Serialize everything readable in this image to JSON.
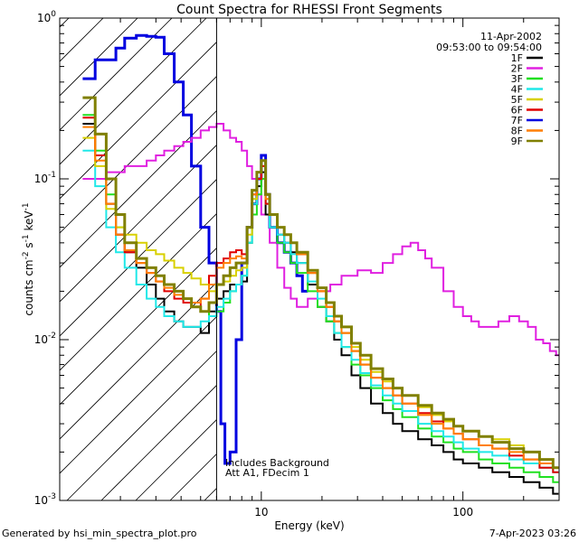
{
  "chart_data": {
    "type": "line",
    "title": "Count Spectra for RHESSI Front Segments",
    "xlabel": "Energy (keV)",
    "ylabel_parts": [
      "counts cm",
      "-2",
      " s",
      "-1",
      " keV",
      "-1"
    ],
    "xscale": "log",
    "yscale": "log",
    "xlim": [
      1.0,
      300
    ],
    "ylim": [
      0.001,
      1.0
    ],
    "x_ticks": [
      {
        "value": 10,
        "label": "10"
      },
      {
        "value": 100,
        "label": "100"
      }
    ],
    "y_ticks": [
      {
        "value": 1.0,
        "base": "10",
        "exp": "0"
      },
      {
        "value": 0.1,
        "base": "10",
        "exp": "-1"
      },
      {
        "value": 0.01,
        "base": "10",
        "exp": "-2"
      },
      {
        "value": 0.001,
        "base": "10",
        "exp": "-3"
      }
    ],
    "date": "11-Apr-2002",
    "time_range": "09:53:00 to 09:54:00",
    "annotations": [
      "Includes Background",
      "Att A1, FDecim 1"
    ],
    "vertical_line_energy": 6.0,
    "hatched_region": [
      1.0,
      6.0
    ],
    "legend": [
      {
        "name": "1F",
        "color": "#000000"
      },
      {
        "name": "2F",
        "color": "#e020e0"
      },
      {
        "name": "3F",
        "color": "#20e020"
      },
      {
        "name": "4F",
        "color": "#20e8e8"
      },
      {
        "name": "5F",
        "color": "#d8d000"
      },
      {
        "name": "6F",
        "color": "#e00000"
      },
      {
        "name": "7F",
        "color": "#0000e0"
      },
      {
        "name": "8F",
        "color": "#ff7f00"
      },
      {
        "name": "9F",
        "color": "#808000"
      }
    ],
    "series": [
      {
        "name": "7F",
        "color": "#0000e0",
        "width": 3,
        "x": [
          1.3,
          1.5,
          1.7,
          1.9,
          2.1,
          2.4,
          2.7,
          3.0,
          3.3,
          3.7,
          4.1,
          4.5,
          5.0,
          5.5,
          6.0,
          6.3,
          6.6,
          7.0,
          7.5,
          8.0,
          8.5,
          9.0,
          9.5,
          10.0,
          10.5,
          11.0,
          12,
          13,
          14,
          15,
          16
        ],
        "y": [
          0.42,
          0.55,
          0.55,
          0.65,
          0.75,
          0.78,
          0.77,
          0.76,
          0.6,
          0.4,
          0.25,
          0.12,
          0.05,
          0.03,
          0.015,
          0.003,
          0.0017,
          0.002,
          0.01,
          0.03,
          0.05,
          0.07,
          0.1,
          0.14,
          0.08,
          0.05,
          0.04,
          0.035,
          0.03,
          0.025,
          0.02
        ]
      },
      {
        "name": "2F",
        "color": "#e020e0",
        "width": 2,
        "x": [
          1.3,
          1.5,
          1.7,
          1.9,
          2.1,
          2.4,
          2.7,
          3.0,
          3.3,
          3.7,
          4.1,
          4.5,
          5.0,
          5.5,
          6.0,
          6.5,
          7.0,
          7.5,
          8.0,
          8.5,
          9.0,
          9.5,
          10,
          11,
          12,
          13,
          14,
          15,
          17,
          19,
          22,
          25,
          30,
          35,
          40,
          45,
          50,
          55,
          60,
          65,
          70,
          80,
          90,
          100,
          110,
          120,
          135,
          150,
          170,
          190,
          210,
          230,
          250,
          270,
          290
        ],
        "y": [
          0.1,
          0.1,
          0.11,
          0.11,
          0.12,
          0.12,
          0.13,
          0.14,
          0.15,
          0.16,
          0.17,
          0.18,
          0.2,
          0.21,
          0.22,
          0.2,
          0.18,
          0.17,
          0.15,
          0.12,
          0.1,
          0.08,
          0.06,
          0.04,
          0.028,
          0.021,
          0.018,
          0.016,
          0.018,
          0.02,
          0.022,
          0.025,
          0.027,
          0.026,
          0.03,
          0.034,
          0.038,
          0.04,
          0.036,
          0.032,
          0.028,
          0.02,
          0.016,
          0.014,
          0.013,
          0.012,
          0.012,
          0.013,
          0.014,
          0.013,
          0.012,
          0.01,
          0.0095,
          0.0085,
          0.008
        ]
      },
      {
        "name": "1F",
        "color": "#000000",
        "width": 2,
        "x": [
          1.3,
          1.5,
          1.7,
          1.9,
          2.1,
          2.4,
          2.7,
          3.0,
          3.3,
          3.7,
          4.1,
          4.5,
          5.0,
          5.5,
          6.0,
          6.5,
          7.0,
          7.5,
          8.0,
          8.5,
          9.0,
          9.5,
          10,
          10.5,
          11,
          12,
          13,
          14,
          15,
          17,
          19,
          21,
          23,
          25,
          28,
          31,
          35,
          40,
          45,
          50,
          60,
          70,
          80,
          90,
          100,
          120,
          140,
          170,
          200,
          240,
          280
        ],
        "y": [
          0.22,
          0.14,
          0.07,
          0.045,
          0.035,
          0.028,
          0.022,
          0.018,
          0.015,
          0.013,
          0.012,
          0.012,
          0.011,
          0.015,
          0.018,
          0.02,
          0.022,
          0.022,
          0.023,
          0.04,
          0.07,
          0.09,
          0.11,
          0.06,
          0.05,
          0.045,
          0.04,
          0.035,
          0.03,
          0.022,
          0.016,
          0.013,
          0.01,
          0.008,
          0.006,
          0.005,
          0.004,
          0.0035,
          0.003,
          0.0027,
          0.0024,
          0.0022,
          0.002,
          0.0018,
          0.0017,
          0.0016,
          0.0015,
          0.0014,
          0.0013,
          0.0012,
          0.0011
        ]
      },
      {
        "name": "3F",
        "color": "#20e020",
        "width": 2,
        "x": [
          1.3,
          1.5,
          1.7,
          1.9,
          2.1,
          2.4,
          2.7,
          3.0,
          3.3,
          3.7,
          4.1,
          4.5,
          5.0,
          5.5,
          6.0,
          6.5,
          7.0,
          7.5,
          8.0,
          8.5,
          9.0,
          9.5,
          10,
          10.5,
          11,
          12,
          13,
          14,
          15,
          17,
          19,
          21,
          23,
          25,
          28,
          31,
          35,
          40,
          45,
          50,
          60,
          70,
          80,
          90,
          100,
          120,
          140,
          170,
          200,
          240,
          280
        ],
        "y": [
          0.25,
          0.15,
          0.08,
          0.05,
          0.04,
          0.032,
          0.028,
          0.025,
          0.022,
          0.02,
          0.018,
          0.016,
          0.015,
          0.014,
          0.015,
          0.017,
          0.02,
          0.022,
          0.025,
          0.04,
          0.06,
          0.08,
          0.1,
          0.07,
          0.05,
          0.04,
          0.035,
          0.03,
          0.026,
          0.02,
          0.016,
          0.013,
          0.011,
          0.009,
          0.007,
          0.006,
          0.005,
          0.0042,
          0.0037,
          0.0033,
          0.0028,
          0.0025,
          0.0023,
          0.0021,
          0.002,
          0.0018,
          0.0017,
          0.0016,
          0.0015,
          0.0014,
          0.0013
        ]
      },
      {
        "name": "4F",
        "color": "#20e8e8",
        "width": 2,
        "x": [
          1.3,
          1.5,
          1.7,
          1.9,
          2.1,
          2.4,
          2.7,
          3.0,
          3.3,
          3.7,
          4.1,
          4.5,
          5.0,
          5.5,
          6.0,
          6.5,
          7.0,
          7.5,
          8.0,
          8.5,
          9.0,
          9.5,
          10,
          10.5,
          11,
          12,
          13,
          14,
          15,
          17,
          19,
          21,
          23,
          25,
          28,
          31,
          35,
          40,
          45,
          50,
          60,
          70,
          80,
          90,
          100,
          120,
          140,
          170,
          200,
          240,
          280
        ],
        "y": [
          0.15,
          0.09,
          0.05,
          0.035,
          0.028,
          0.022,
          0.018,
          0.016,
          0.014,
          0.013,
          0.012,
          0.012,
          0.013,
          0.014,
          0.016,
          0.018,
          0.02,
          0.022,
          0.025,
          0.04,
          0.07,
          0.1,
          0.13,
          0.07,
          0.05,
          0.045,
          0.04,
          0.034,
          0.03,
          0.023,
          0.018,
          0.014,
          0.011,
          0.009,
          0.0075,
          0.0062,
          0.0052,
          0.0045,
          0.004,
          0.0036,
          0.003,
          0.0027,
          0.0025,
          0.0023,
          0.0021,
          0.002,
          0.0019,
          0.0018,
          0.0017,
          0.0016,
          0.0015
        ]
      },
      {
        "name": "5F",
        "color": "#d8d000",
        "width": 2,
        "x": [
          1.3,
          1.5,
          1.7,
          1.9,
          2.1,
          2.4,
          2.7,
          3.0,
          3.3,
          3.7,
          4.1,
          4.5,
          5.0,
          5.5,
          6.0,
          6.5,
          7.0,
          7.5,
          8.0,
          8.5,
          9.0,
          9.5,
          10,
          10.5,
          11,
          12,
          13,
          14,
          15,
          17,
          19,
          21,
          23,
          25,
          28,
          31,
          35,
          40,
          45,
          50,
          60,
          70,
          80,
          90,
          100,
          120,
          140,
          170,
          200,
          240,
          280
        ],
        "y": [
          0.18,
          0.12,
          0.065,
          0.05,
          0.045,
          0.04,
          0.036,
          0.034,
          0.031,
          0.028,
          0.026,
          0.024,
          0.022,
          0.02,
          0.022,
          0.023,
          0.025,
          0.027,
          0.028,
          0.045,
          0.075,
          0.1,
          0.12,
          0.08,
          0.06,
          0.05,
          0.045,
          0.04,
          0.034,
          0.026,
          0.02,
          0.016,
          0.013,
          0.011,
          0.009,
          0.0075,
          0.0063,
          0.0055,
          0.005,
          0.0045,
          0.0038,
          0.0034,
          0.0031,
          0.0029,
          0.0027,
          0.0025,
          0.0024,
          0.0022,
          0.002,
          0.0018,
          0.0016
        ]
      },
      {
        "name": "6F",
        "color": "#e00000",
        "width": 2,
        "x": [
          1.3,
          1.5,
          1.7,
          1.9,
          2.1,
          2.4,
          2.7,
          3.0,
          3.3,
          3.7,
          4.1,
          4.5,
          5.0,
          5.5,
          6.0,
          6.5,
          7.0,
          7.5,
          8.0,
          8.5,
          9.0,
          9.5,
          10,
          10.5,
          11,
          12,
          13,
          14,
          15,
          17,
          19,
          21,
          23,
          25,
          28,
          31,
          35,
          40,
          45,
          50,
          60,
          70,
          80,
          90,
          100,
          120,
          140,
          170,
          200,
          240,
          280
        ],
        "y": [
          0.24,
          0.14,
          0.07,
          0.045,
          0.035,
          0.03,
          0.026,
          0.023,
          0.02,
          0.018,
          0.017,
          0.016,
          0.018,
          0.025,
          0.03,
          0.032,
          0.035,
          0.036,
          0.034,
          0.05,
          0.08,
          0.1,
          0.12,
          0.07,
          0.06,
          0.05,
          0.045,
          0.04,
          0.034,
          0.026,
          0.02,
          0.016,
          0.013,
          0.011,
          0.0085,
          0.007,
          0.0058,
          0.005,
          0.0045,
          0.004,
          0.0035,
          0.0031,
          0.0028,
          0.0026,
          0.0024,
          0.0022,
          0.0021,
          0.0019,
          0.0018,
          0.0016,
          0.0015
        ]
      },
      {
        "name": "8F",
        "color": "#ff7f00",
        "width": 2,
        "x": [
          1.3,
          1.5,
          1.7,
          1.9,
          2.1,
          2.4,
          2.7,
          3.0,
          3.3,
          3.7,
          4.1,
          4.5,
          5.0,
          5.5,
          6.0,
          6.5,
          7.0,
          7.5,
          8.0,
          8.5,
          9.0,
          9.5,
          10,
          10.5,
          11,
          12,
          13,
          14,
          15,
          17,
          19,
          21,
          23,
          25,
          28,
          31,
          35,
          40,
          45,
          50,
          60,
          70,
          80,
          90,
          100,
          120,
          140,
          170,
          200,
          240,
          280
        ],
        "y": [
          0.21,
          0.13,
          0.07,
          0.045,
          0.036,
          0.03,
          0.026,
          0.023,
          0.021,
          0.019,
          0.018,
          0.017,
          0.018,
          0.022,
          0.028,
          0.03,
          0.032,
          0.033,
          0.032,
          0.05,
          0.08,
          0.11,
          0.13,
          0.075,
          0.06,
          0.05,
          0.045,
          0.04,
          0.034,
          0.026,
          0.02,
          0.016,
          0.013,
          0.011,
          0.0085,
          0.007,
          0.0058,
          0.005,
          0.0045,
          0.004,
          0.0034,
          0.003,
          0.0028,
          0.0026,
          0.0024,
          0.0022,
          0.0021,
          0.002,
          0.0018,
          0.0017,
          0.0016
        ]
      },
      {
        "name": "9F",
        "color": "#808000",
        "width": 3,
        "x": [
          1.3,
          1.5,
          1.7,
          1.9,
          2.1,
          2.4,
          2.7,
          3.0,
          3.3,
          3.7,
          4.1,
          4.5,
          5.0,
          5.5,
          6.0,
          6.5,
          7.0,
          7.5,
          8.0,
          8.5,
          9.0,
          9.5,
          10,
          10.5,
          11,
          12,
          13,
          14,
          15,
          17,
          19,
          21,
          23,
          25,
          28,
          31,
          35,
          40,
          45,
          50,
          60,
          70,
          80,
          90,
          100,
          120,
          140,
          170,
          200,
          240,
          280
        ],
        "y": [
          0.32,
          0.19,
          0.1,
          0.06,
          0.04,
          0.032,
          0.028,
          0.025,
          0.022,
          0.02,
          0.018,
          0.016,
          0.015,
          0.017,
          0.022,
          0.025,
          0.028,
          0.03,
          0.03,
          0.05,
          0.085,
          0.11,
          0.13,
          0.08,
          0.06,
          0.05,
          0.045,
          0.04,
          0.035,
          0.027,
          0.021,
          0.017,
          0.014,
          0.012,
          0.0095,
          0.008,
          0.0066,
          0.0057,
          0.005,
          0.0045,
          0.0039,
          0.0035,
          0.0032,
          0.0029,
          0.0027,
          0.0025,
          0.0023,
          0.0021,
          0.002,
          0.0018,
          0.0016
        ]
      }
    ]
  },
  "footer": {
    "generated_by": "Generated by hsi_min_spectra_plot.pro",
    "timestamp": "7-Apr-2023 03:26"
  }
}
